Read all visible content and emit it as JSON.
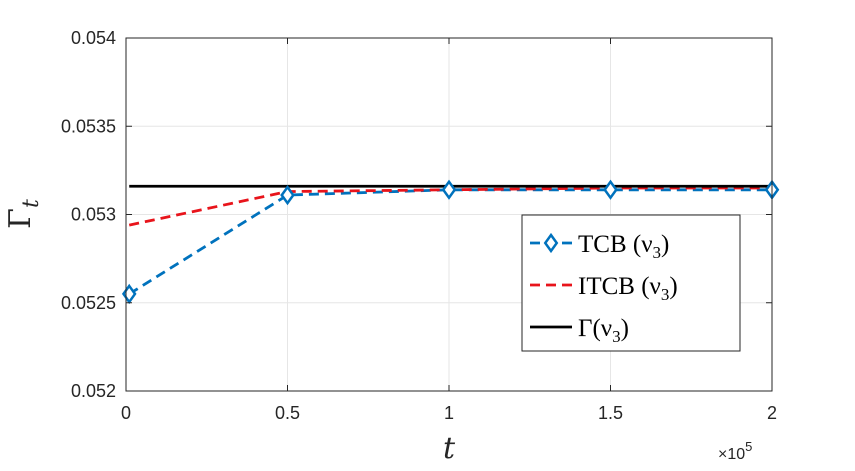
{
  "chart_data": {
    "type": "line",
    "xlabel": "t",
    "ylabel": "Γ_t",
    "x_multiplier_label": "×10",
    "x_multiplier_exponent": "5",
    "xlim": [
      0,
      200000
    ],
    "ylim": [
      0.052,
      0.054
    ],
    "grid": true,
    "legend_position": "lower-right",
    "x_ticks": [
      0,
      50000,
      100000,
      150000,
      200000
    ],
    "x_tick_labels": [
      "0",
      "0.5",
      "1",
      "1.5",
      "2"
    ],
    "y_ticks": [
      0.052,
      0.0525,
      0.053,
      0.0535,
      0.054
    ],
    "y_tick_labels": [
      "0.052",
      "0.0525",
      "0.053",
      "0.0535",
      "0.054"
    ],
    "x": [
      1000,
      50000,
      100000,
      150000,
      200000
    ],
    "series": [
      {
        "name": "TCB (ν3)",
        "legend_label": "TCB (ν",
        "legend_sub": "3",
        "color": "#0072bd",
        "style": "dashed",
        "marker": "diamond",
        "values": [
          0.05255,
          0.05311,
          0.05314,
          0.05314,
          0.05314
        ]
      },
      {
        "name": "ITCB (ν3)",
        "legend_label": "ITCB (ν",
        "legend_sub": "3",
        "color": "#e8141b",
        "style": "dashed",
        "marker": "none",
        "values": [
          0.05294,
          0.05313,
          0.05314,
          0.05315,
          0.05315
        ]
      },
      {
        "name": "Γ(ν3)",
        "legend_label": "Γ(ν",
        "legend_sub": "3",
        "color": "#000000",
        "style": "solid",
        "marker": "none",
        "values": [
          0.05316,
          0.05316,
          0.05316,
          0.05316,
          0.05316
        ]
      }
    ]
  }
}
